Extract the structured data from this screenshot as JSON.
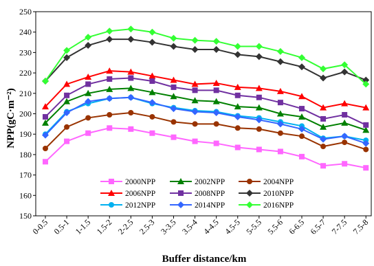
{
  "chart_data": {
    "type": "line",
    "title": "",
    "xlabel": "Buffer distance/km",
    "ylabel": "NPP(gC·m⁻²)",
    "ylim": [
      150,
      250
    ],
    "yticks": [
      150,
      160,
      170,
      180,
      190,
      200,
      210,
      220,
      230,
      240,
      250
    ],
    "grid": false,
    "legend_position": "bottom-center, inside plot, 3 columns",
    "categories": [
      "0-0.5",
      "0.5-1",
      "1-1.5",
      "1.5-2",
      "2-2.5",
      "2.5-3",
      "3-3.5",
      "3.5-4",
      "4-4.5",
      "4.5-5",
      "5-5.5",
      "5.5-6",
      "6-6.5",
      "6.5-7",
      "7-7.5",
      "7.5-8"
    ],
    "series": [
      {
        "name": "2000NPP",
        "color": "#ff66ff",
        "marker": "square",
        "values": [
          176.5,
          186.5,
          190.5,
          193,
          192.5,
          190.5,
          188.5,
          186.5,
          185.5,
          183.5,
          182.5,
          181.5,
          179,
          174.5,
          175.5,
          173.5
        ]
      },
      {
        "name": "2002NPP",
        "color": "#008000",
        "marker": "triangle",
        "values": [
          195.5,
          206,
          210,
          212,
          212.5,
          210.5,
          208.5,
          206.5,
          206,
          203.5,
          203,
          200,
          198.5,
          193.5,
          195.5,
          192
        ]
      },
      {
        "name": "2004NPP",
        "color": "#993300",
        "marker": "circle",
        "values": [
          183,
          193.5,
          198,
          199.5,
          200.5,
          198.5,
          196,
          195,
          195,
          193,
          192.5,
          190.5,
          189,
          184,
          186,
          182.5
        ]
      },
      {
        "name": "2006NPP",
        "color": "#ff0000",
        "marker": "triangle",
        "values": [
          203.5,
          214.5,
          218,
          221,
          220.5,
          218.5,
          216.5,
          214.5,
          215,
          213,
          212.5,
          211,
          208.5,
          203,
          205,
          203
        ]
      },
      {
        "name": "2008NPP",
        "color": "#7030a0",
        "marker": "square",
        "values": [
          198.5,
          209,
          214.5,
          217,
          217.5,
          216,
          213,
          211.5,
          211.5,
          209,
          208,
          205.5,
          202.5,
          197.5,
          199.5,
          194.5
        ]
      },
      {
        "name": "2010NPP",
        "color": "#333333",
        "marker": "diamond",
        "values": [
          216,
          227.5,
          233.5,
          236.5,
          236.5,
          235,
          233,
          231.5,
          231.5,
          229,
          228,
          225.5,
          223,
          217.5,
          220.5,
          216.5
        ]
      },
      {
        "name": "2012NPP",
        "color": "#00b0f0",
        "marker": "circle",
        "values": [
          190,
          201,
          205,
          207.5,
          208,
          205,
          203,
          201.5,
          201,
          199,
          198,
          196,
          194,
          188,
          189,
          187
        ]
      },
      {
        "name": "2014NPP",
        "color": "#3366ff",
        "marker": "diamond",
        "values": [
          189.5,
          200.5,
          206,
          207.5,
          208,
          205.5,
          202.5,
          201,
          200.5,
          198.5,
          197,
          195,
          192.5,
          187.5,
          189,
          185.5
        ]
      },
      {
        "name": "2016NPP",
        "color": "#33ff33",
        "marker": "diamond",
        "values": [
          216,
          231,
          237.5,
          240.5,
          241.5,
          240,
          237,
          236,
          235.5,
          233,
          233,
          230.5,
          227.5,
          222,
          224,
          214.5
        ]
      }
    ]
  }
}
